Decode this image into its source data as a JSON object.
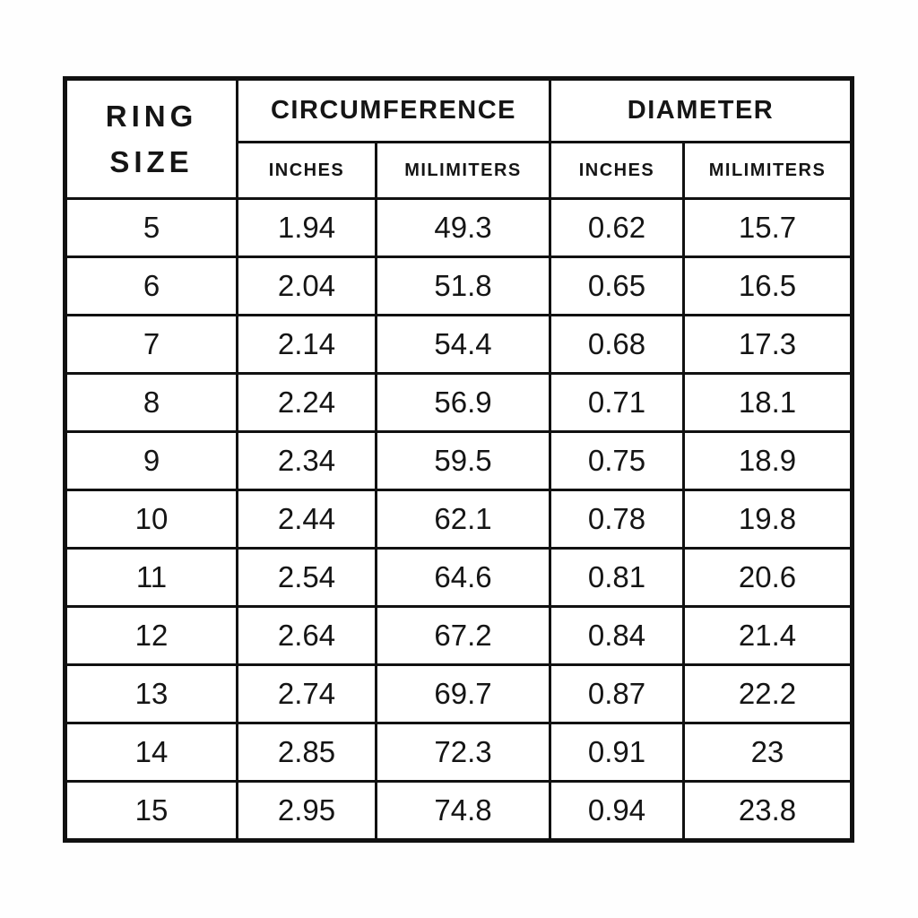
{
  "colors": {
    "border": "#111111",
    "text": "#151515",
    "background": "#ffffff"
  },
  "table": {
    "ring_size_header": {
      "line1": "RING",
      "line2": "SIZE"
    },
    "group_headers": [
      "CIRCUMFERENCE",
      "DIAMETER"
    ],
    "sub_headers": [
      "INCHES",
      "MILIMITERS",
      "INCHES",
      "MILIMITERS"
    ]
  },
  "chart_data": {
    "type": "table",
    "columns": [
      "RING SIZE",
      "CIRCUMFERENCE INCHES",
      "CIRCUMFERENCE MILIMITERS",
      "DIAMETER INCHES",
      "DIAMETER MILIMITERS"
    ],
    "rows": [
      [
        "5",
        "1.94",
        "49.3",
        "0.62",
        "15.7"
      ],
      [
        "6",
        "2.04",
        "51.8",
        "0.65",
        "16.5"
      ],
      [
        "7",
        "2.14",
        "54.4",
        "0.68",
        "17.3"
      ],
      [
        "8",
        "2.24",
        "56.9",
        "0.71",
        "18.1"
      ],
      [
        "9",
        "2.34",
        "59.5",
        "0.75",
        "18.9"
      ],
      [
        "10",
        "2.44",
        "62.1",
        "0.78",
        "19.8"
      ],
      [
        "11",
        "2.54",
        "64.6",
        "0.81",
        "20.6"
      ],
      [
        "12",
        "2.64",
        "67.2",
        "0.84",
        "21.4"
      ],
      [
        "13",
        "2.74",
        "69.7",
        "0.87",
        "22.2"
      ],
      [
        "14",
        "2.85",
        "72.3",
        "0.91",
        "23"
      ],
      [
        "15",
        "2.95",
        "74.8",
        "0.94",
        "23.8"
      ]
    ]
  }
}
